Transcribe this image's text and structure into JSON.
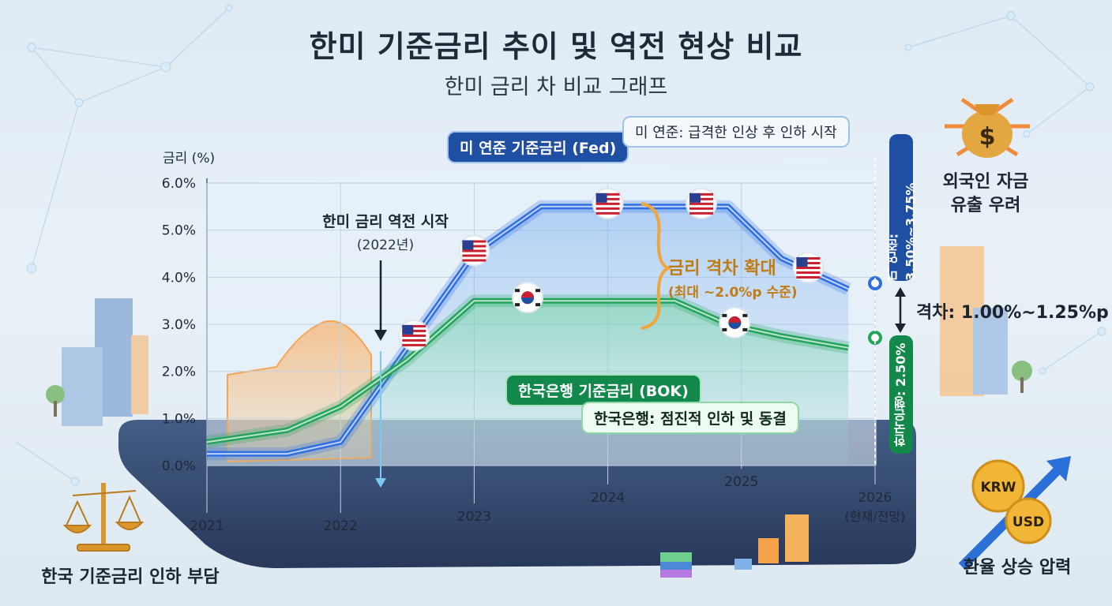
{
  "header": {
    "title": "한미 기준금리 추이 및 역전 현상 비교",
    "subtitle": "한미 금리 차 비교 그래프"
  },
  "chart_data": {
    "type": "line",
    "title": "한미 기준금리 추이 및 역전 현상 비교",
    "subtitle": "한미 금리 차 비교 그래프",
    "ylabel": "금리 (%)",
    "xlabel": "",
    "ylim": [
      0,
      6
    ],
    "yticks": [
      "0.0%",
      "1.0%",
      "2.0%",
      "3.0%",
      "4.0%",
      "5.0%",
      "6.0%"
    ],
    "xticks": [
      "2021",
      "2022",
      "2023",
      "2024",
      "2025",
      "2026"
    ],
    "xtick_sub": {
      "2026": "(현재/전망)"
    },
    "grid": true,
    "x": [
      2021.0,
      2021.6,
      2022.0,
      2022.5,
      2023.0,
      2023.5,
      2024.0,
      2024.5,
      2024.9,
      2025.3,
      2025.8
    ],
    "series": [
      {
        "name": "미 연준 기준금리 (Fed)",
        "color": "#2f6fe0",
        "values": [
          0.25,
          0.25,
          0.5,
          2.5,
          4.5,
          5.5,
          5.5,
          5.5,
          5.5,
          4.4,
          3.75
        ]
      },
      {
        "name": "한국은행 기준금리 (BOK)",
        "color": "#22a45a",
        "values": [
          0.5,
          0.75,
          1.25,
          2.25,
          3.5,
          3.5,
          3.5,
          3.5,
          3.0,
          2.75,
          2.5
        ]
      }
    ]
  },
  "labels": {
    "fed_pill": "미 연준 기준금리 (Fed)",
    "fed_comment": "미 연준: 급격한 인상 후 인하 시작",
    "bok_pill": "한국은행 기준금리 (BOK)",
    "bok_comment": "한국은행: 점진적 인하 및 동결",
    "reversal_title": "한미 금리 역전 시작",
    "reversal_year": "(2022년)",
    "gap_widen_title": "금리 격차 확대",
    "gap_widen_note": "(최대 ~2.0%p 수준)",
    "fed_current": "미 연준: 3.50%~3.75%",
    "bok_current": "한국은행: 2.50%",
    "gap_current": "격차: 1.00%~1.25%p"
  },
  "side_notes": {
    "outflow_line1": "외국인 자금",
    "outflow_line2": "유출 우려",
    "fx": "환율 상승 압력",
    "kr_burden": "한국 기준금리 인하 부담",
    "krw": "KRW",
    "usd": "USD",
    "dollar_sign": "$"
  },
  "colors": {
    "fed": "#2f6fe0",
    "bok": "#22a45a",
    "accent_orange": "#c07b14",
    "platform": "#2a3d63"
  }
}
